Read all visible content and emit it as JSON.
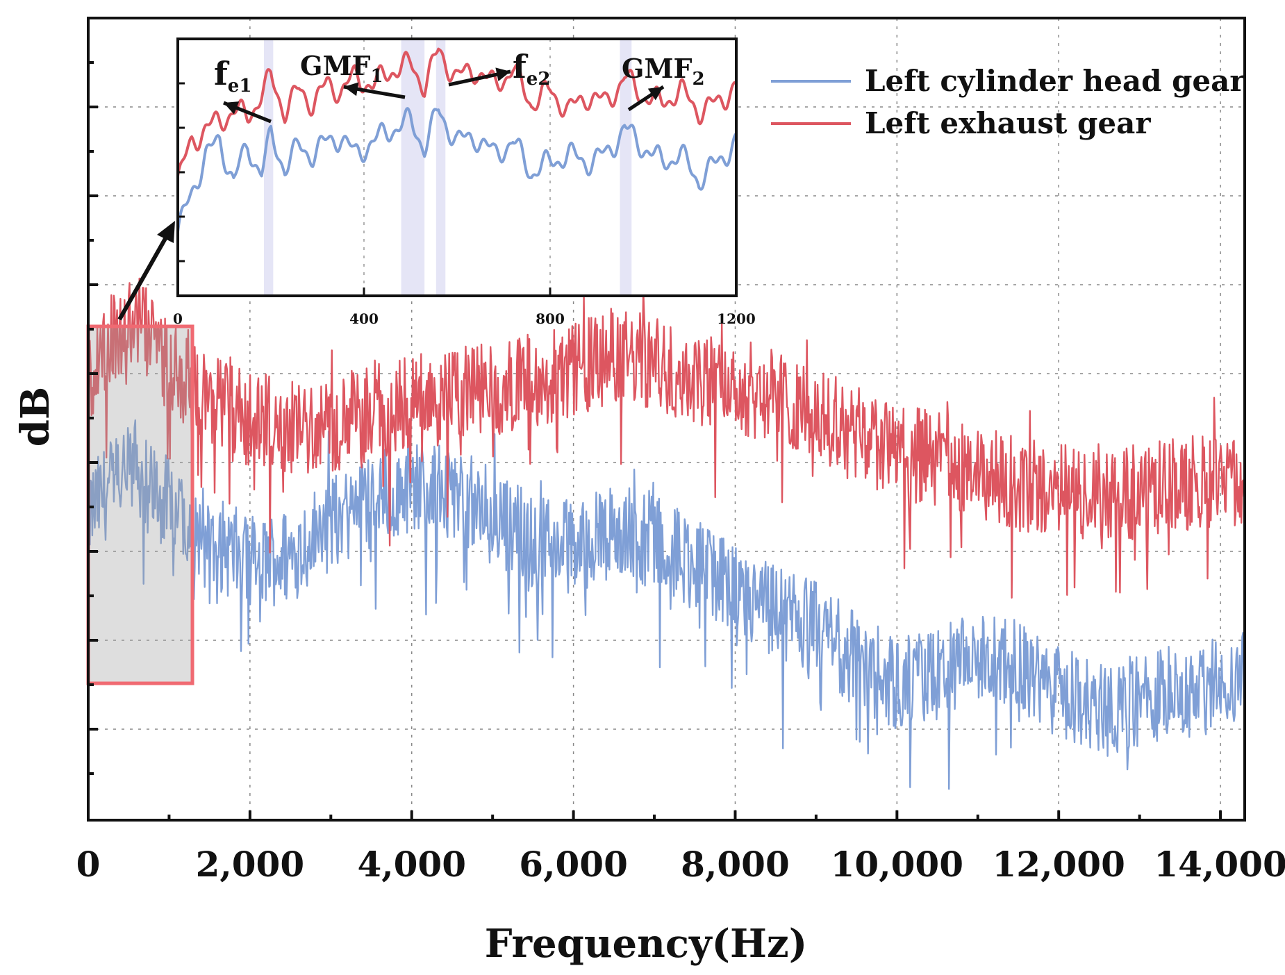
{
  "chart_data": {
    "type": "line",
    "title": "",
    "xlabel": "Frequency(Hz)",
    "ylabel": "dB",
    "xlim": [
      0,
      14300
    ],
    "ylim": [
      -100,
      0
    ],
    "x_ticks": [
      0,
      2000,
      4000,
      6000,
      8000,
      10000,
      12000,
      14000
    ],
    "x_tick_labels": [
      "0",
      "2,000",
      "4,000",
      "6,000",
      "8,000",
      "10,000",
      "12,000",
      "14,000"
    ],
    "grid": "dotted",
    "legend": {
      "placement": "top-right",
      "entries": [
        "Left cylinder head gear",
        "Left exhaust gear"
      ]
    },
    "series": [
      {
        "name": "Left cylinder head gear",
        "color": "#7f9fd6",
        "x": [
          0,
          300,
          600,
          900,
          1200,
          1500,
          2000,
          2500,
          3000,
          3500,
          4000,
          4500,
          5000,
          5500,
          6000,
          6500,
          7000,
          7500,
          8000,
          8500,
          9000,
          9500,
          10000,
          10500,
          11000,
          11500,
          12000,
          12500,
          13000,
          13500,
          14000,
          14300
        ],
        "values": [
          -62,
          -58,
          -56,
          -60,
          -62,
          -65,
          -68,
          -67,
          -63,
          -60,
          -58,
          -59,
          -62,
          -65,
          -66,
          -64,
          -65,
          -68,
          -72,
          -74,
          -76,
          -80,
          -83,
          -82,
          -80,
          -81,
          -84,
          -86,
          -85,
          -84,
          -83,
          -82
        ]
      },
      {
        "name": "Left exhaust gear",
        "color": "#dd5660",
        "x": [
          0,
          300,
          600,
          900,
          1200,
          1500,
          2000,
          2500,
          3000,
          3500,
          4000,
          4500,
          5000,
          5500,
          6000,
          6500,
          7000,
          7500,
          8000,
          8500,
          9000,
          9500,
          10000,
          10500,
          11000,
          11500,
          12000,
          12500,
          13000,
          13500,
          14000,
          14300
        ],
        "values": [
          -45,
          -40,
          -38,
          -42,
          -45,
          -47,
          -50,
          -51,
          -51,
          -49,
          -48,
          -47,
          -46,
          -45,
          -44,
          -42,
          -43,
          -45,
          -46,
          -47,
          -49,
          -52,
          -54,
          -55,
          -57,
          -58,
          -59,
          -59,
          -59,
          -58,
          -58,
          -57
        ]
      }
    ],
    "inset": {
      "xlim": [
        0,
        1200
      ],
      "x_ticks": [
        0,
        400,
        800,
        1200
      ],
      "x_tick_labels": [
        "0",
        "400",
        "800",
        "1200"
      ],
      "ylim": [
        -100,
        0
      ],
      "series": [
        {
          "name": "Left cylinder head gear",
          "x": [
            0,
            30,
            60,
            90,
            120,
            150,
            180,
            200,
            230,
            260,
            290,
            320,
            350,
            380,
            420,
            460,
            500,
            530,
            560,
            600,
            640,
            680,
            720,
            760,
            800,
            840,
            880,
            920,
            960,
            1000,
            1040,
            1080,
            1120,
            1160,
            1200
          ],
          "values": [
            -75,
            -60,
            -45,
            -40,
            -55,
            -42,
            -52,
            -38,
            -50,
            -42,
            -45,
            -40,
            -38,
            -45,
            -40,
            -35,
            -32,
            -42,
            -28,
            -40,
            -38,
            -45,
            -40,
            -52,
            -48,
            -45,
            -48,
            -45,
            -35,
            -42,
            -48,
            -45,
            -55,
            -48,
            -40
          ]
        },
        {
          "name": "Left exhaust gear",
          "x": [
            0,
            30,
            60,
            90,
            120,
            150,
            180,
            200,
            230,
            260,
            290,
            320,
            350,
            380,
            420,
            460,
            500,
            530,
            560,
            600,
            640,
            680,
            720,
            760,
            800,
            840,
            880,
            920,
            960,
            1000,
            1040,
            1080,
            1120,
            1160,
            1200
          ],
          "values": [
            -55,
            -40,
            -35,
            -32,
            -28,
            -30,
            -22,
            -15,
            -28,
            -20,
            -25,
            -18,
            -20,
            -15,
            -18,
            -12,
            -10,
            -18,
            -5,
            -15,
            -12,
            -18,
            -12,
            -25,
            -20,
            -28,
            -22,
            -25,
            -15,
            -22,
            -25,
            -20,
            -28,
            -25,
            -18
          ]
        }
      ],
      "annotations": [
        {
          "base": "f",
          "sub": "e1",
          "x": 200
        },
        {
          "base": "GMF",
          "sub": "1",
          "x": 500
        },
        {
          "base": "f",
          "sub": "e2",
          "x": 565
        },
        {
          "base": "GMF",
          "sub": "2",
          "x": 960
        }
      ]
    }
  }
}
